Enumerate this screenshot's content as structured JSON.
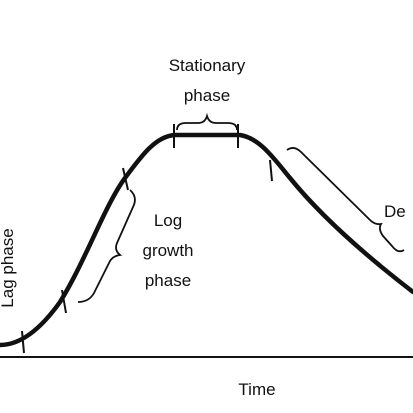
{
  "labels": {
    "stationary_line1": "Stationary",
    "stationary_line2": "phase",
    "log_line1": "Log",
    "log_line2": "growth",
    "log_line3": "phase",
    "lag": "Lag  phase",
    "death_partial": "De",
    "x_axis": "Time"
  }
}
